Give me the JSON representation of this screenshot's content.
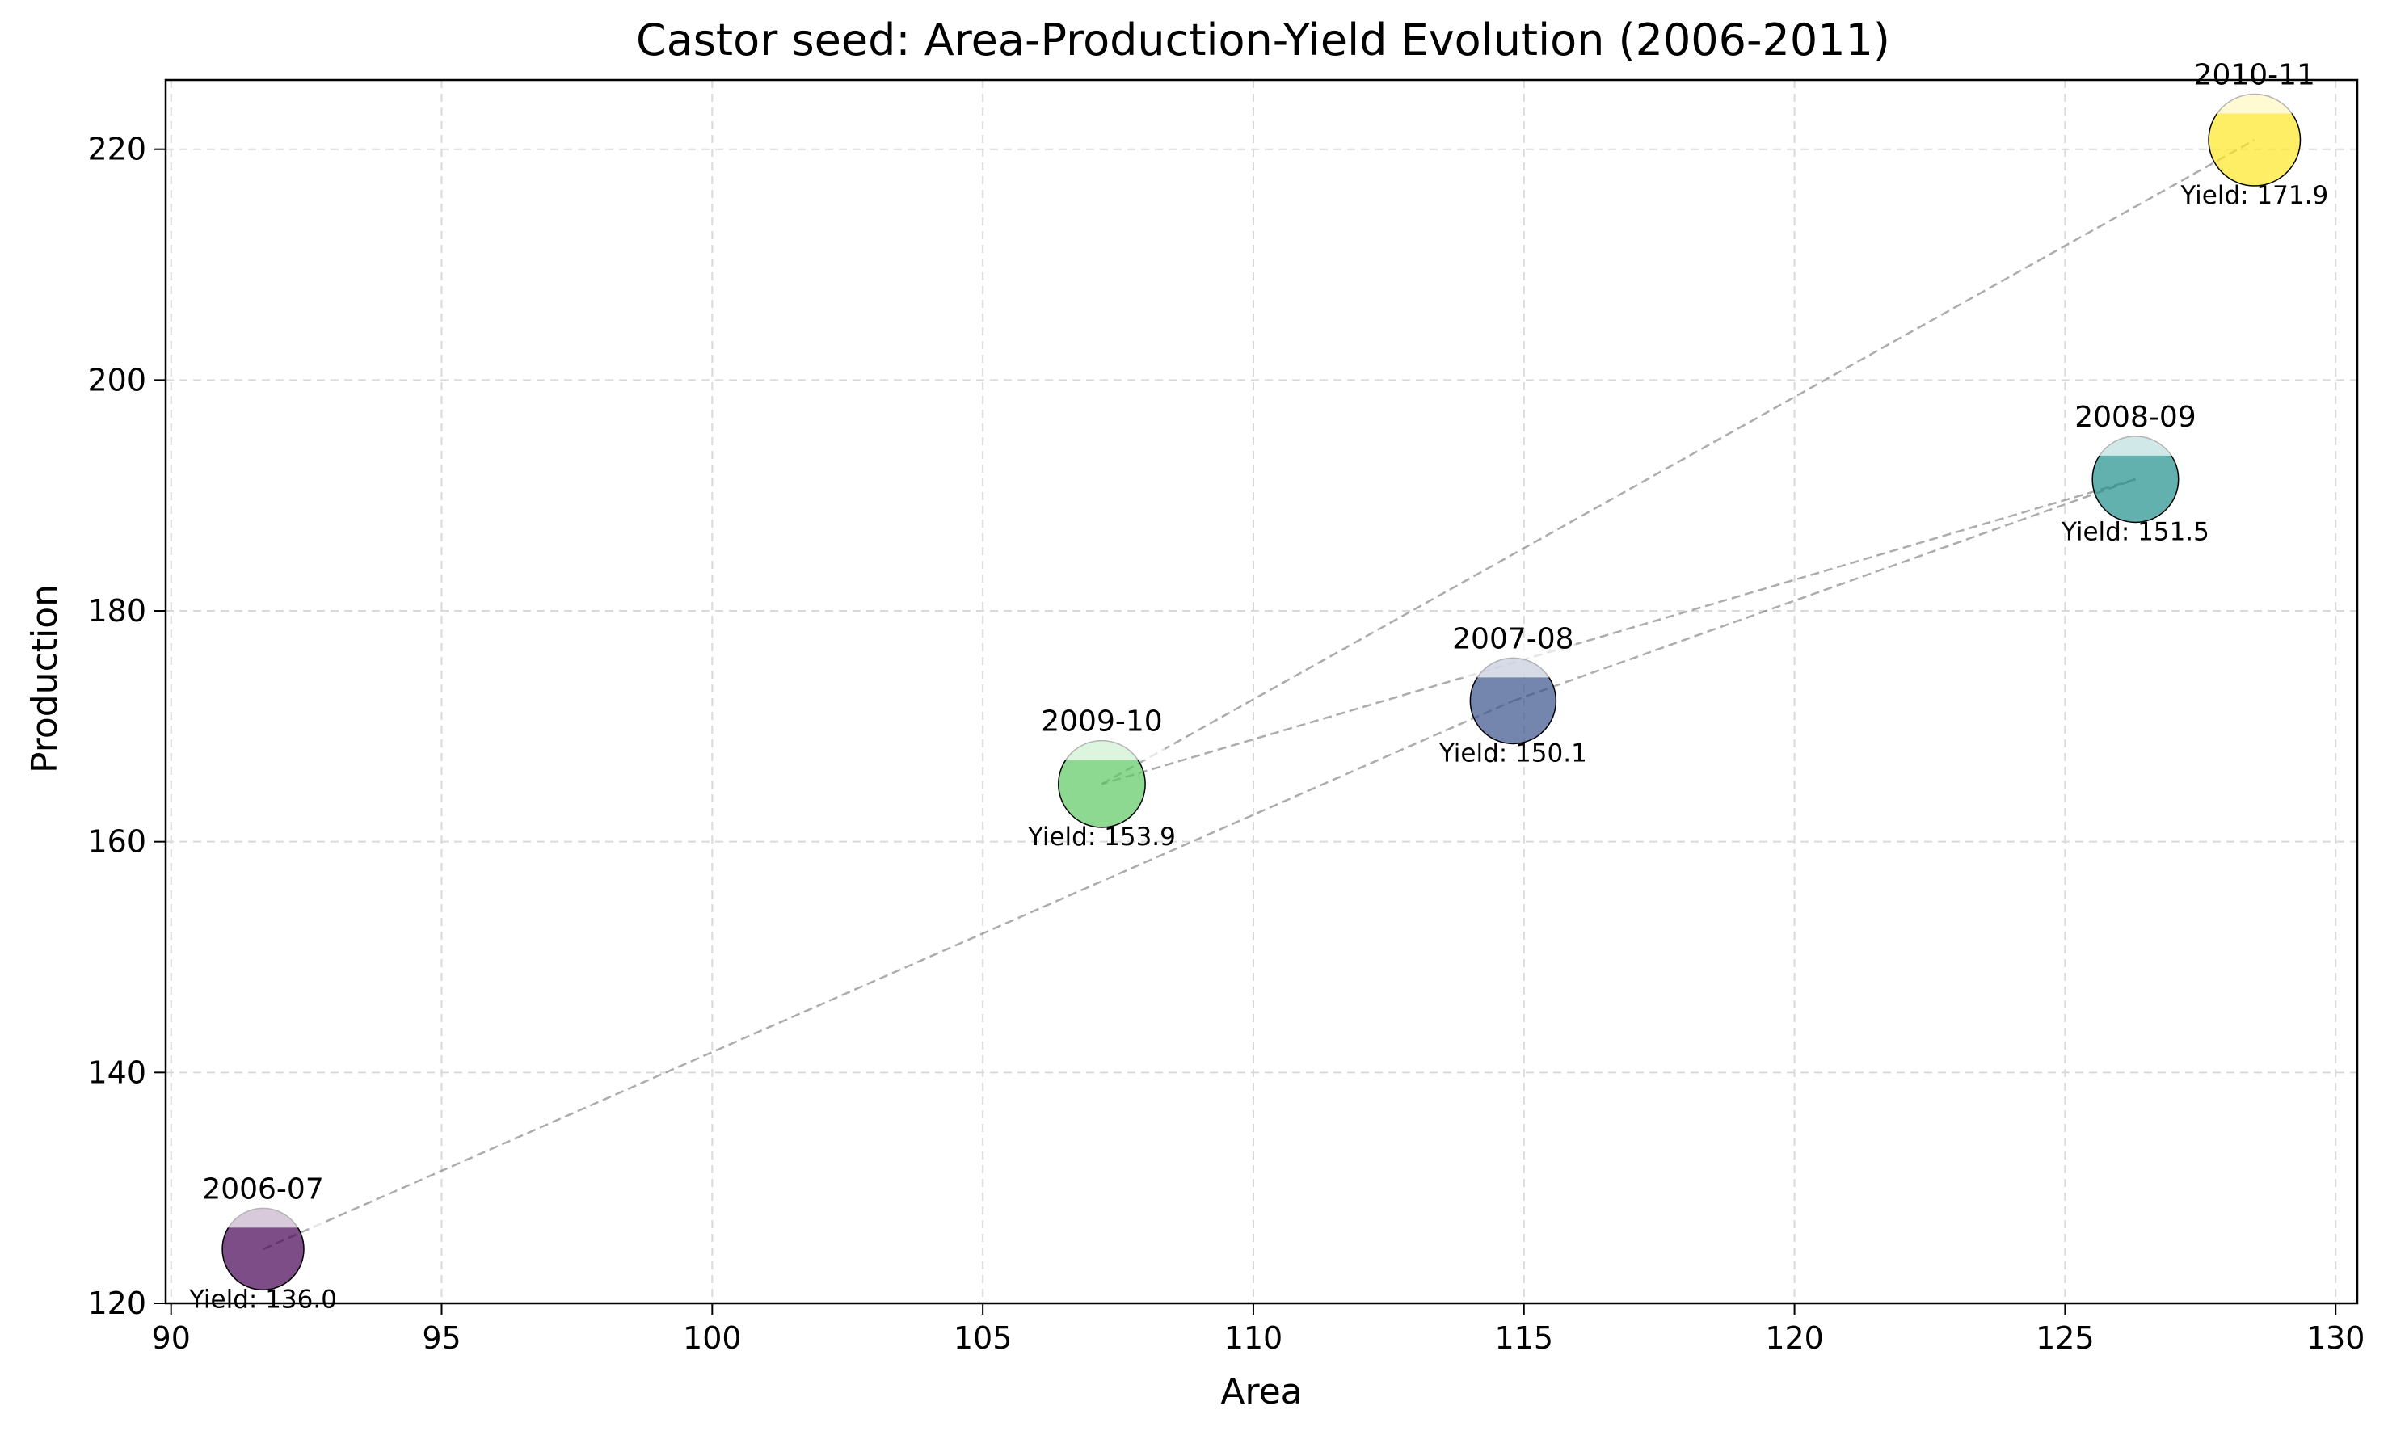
{
  "chart_data": {
    "type": "scatter",
    "title": "Castor seed: Area-Production-Yield Evolution (2006-2011)",
    "xlabel": "Area",
    "ylabel": "Production",
    "xlim": [
      89.9,
      130.4
    ],
    "ylim": [
      120,
      226
    ],
    "xticks": [
      90,
      95,
      100,
      105,
      110,
      115,
      120,
      125,
      130
    ],
    "yticks": [
      120,
      140,
      160,
      180,
      200,
      220
    ],
    "grid": true,
    "legend": "none",
    "connector": "dashed line in chronological order",
    "yield_prefix": "Yield: ",
    "points": [
      {
        "label": "2006-07",
        "area": 91.7,
        "production": 124.7,
        "yield": "136.0",
        "color": "#440154"
      },
      {
        "label": "2007-08",
        "area": 114.8,
        "production": 172.2,
        "yield": "150.1",
        "color": "#3b528b"
      },
      {
        "label": "2008-09",
        "area": 126.3,
        "production": 191.4,
        "yield": "151.5",
        "color": "#21908d"
      },
      {
        "label": "2009-10",
        "area": 107.2,
        "production": 165.0,
        "yield": "153.9",
        "color": "#5dc963"
      },
      {
        "label": "2010-11",
        "area": 128.5,
        "production": 220.8,
        "yield": "171.9",
        "color": "#fde725"
      }
    ]
  }
}
